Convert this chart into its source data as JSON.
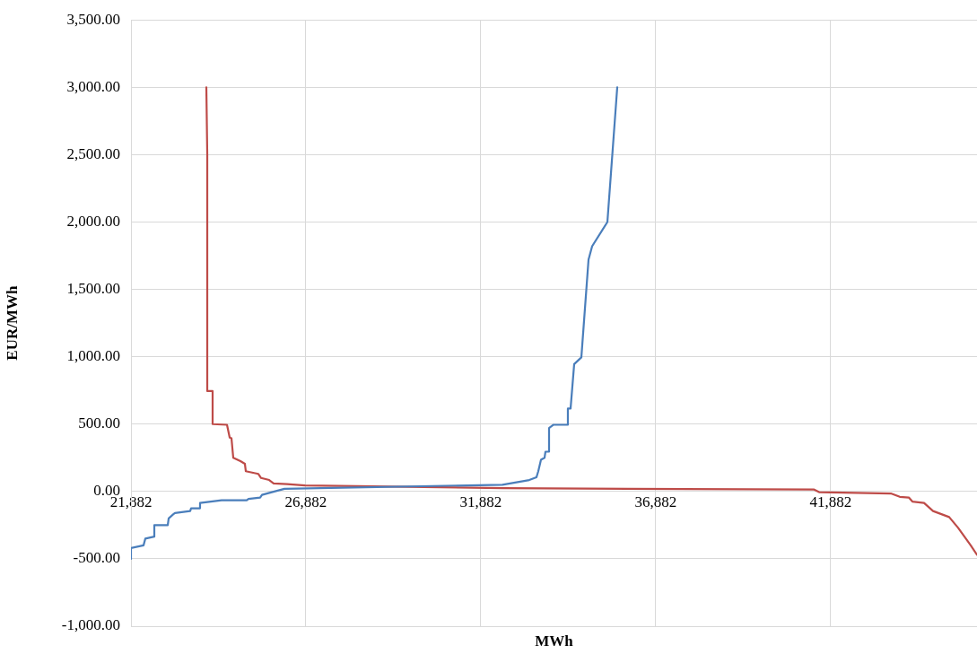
{
  "chart_data": {
    "type": "line",
    "xlabel": "MWh",
    "ylabel": "EUR/MWh",
    "xlim": [
      21882,
      46062
    ],
    "ylim": [
      -1000,
      3500
    ],
    "xticks": [
      {
        "value": 21882,
        "label": "21,882"
      },
      {
        "value": 26882,
        "label": "26,882"
      },
      {
        "value": 31882,
        "label": "31,882"
      },
      {
        "value": 36882,
        "label": "36,882"
      },
      {
        "value": 41882,
        "label": "41,882"
      }
    ],
    "yticks": [
      {
        "value": -1000,
        "label": "-1,000.00"
      },
      {
        "value": -500,
        "label": "-500.00"
      },
      {
        "value": 0,
        "label": "0.00"
      },
      {
        "value": 500,
        "label": "500.00"
      },
      {
        "value": 1000,
        "label": "1,000.00"
      },
      {
        "value": 1500,
        "label": "1,500.00"
      },
      {
        "value": 2000,
        "label": "2,000.00"
      },
      {
        "value": 2500,
        "label": "2,500.00"
      },
      {
        "value": 3000,
        "label": "3,000.00"
      },
      {
        "value": 3500,
        "label": "3,500.00"
      }
    ],
    "grid": true,
    "legend": false,
    "marker": "none",
    "line_style": "solid",
    "series": [
      {
        "color": "#4a7ebb",
        "x": [
          21882,
          21882,
          22241,
          22292,
          22549,
          22549,
          22933,
          22959,
          23087,
          23138,
          23574,
          23600,
          23831,
          23856,
          24472,
          25190,
          25241,
          25574,
          25626,
          25908,
          26267,
          32497,
          33266,
          33471,
          33523,
          33600,
          33702,
          33728,
          33831,
          33831,
          33959,
          34344,
          34369,
          34446,
          34549,
          34754,
          34959,
          35062,
          35498,
          35780
        ],
        "values": [
          -500,
          -420,
          -400,
          -350,
          -335,
          -250,
          -250,
          -200,
          -170,
          -160,
          -145,
          -125,
          -125,
          -85,
          -65,
          -65,
          -55,
          -45,
          -25,
          -5,
          20,
          50,
          85,
          105,
          150,
          235,
          250,
          295,
          295,
          470,
          495,
          495,
          615,
          615,
          945,
          995,
          1720,
          1820,
          2000,
          3000
        ]
      },
      {
        "color": "#be4b48",
        "x": [
          24036,
          24062,
          24062,
          24215,
          24215,
          24626,
          24703,
          24754,
          24805,
          25010,
          25138,
          25164,
          25523,
          25600,
          25831,
          25959,
          26344,
          26856,
          32497,
          36087,
          41395,
          41549,
          43600,
          43856,
          44113,
          44215,
          44549,
          44805,
          45062,
          45267,
          45523,
          45882,
          46062
        ],
        "values": [
          3000,
          2500,
          745,
          745,
          500,
          495,
          400,
          395,
          250,
          225,
          205,
          150,
          130,
          100,
          85,
          60,
          55,
          45,
          25,
          20,
          15,
          -5,
          -15,
          -40,
          -45,
          -75,
          -85,
          -145,
          -170,
          -190,
          -270,
          -400,
          -470
        ]
      }
    ]
  }
}
